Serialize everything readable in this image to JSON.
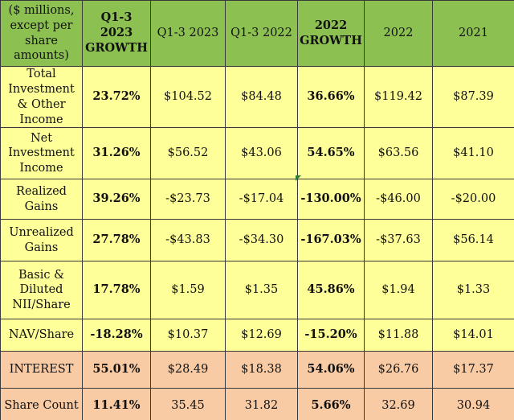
{
  "header": {
    "label": "($ millions, except per share amounts)",
    "col_q13_growth": "Q1-3 2023 GROWTH",
    "col_q13_2023": "Q1-3 2023",
    "col_q13_2022": "Q1-3 2022",
    "col_2022_growth": "2022 GROWTH",
    "col_2022": "2022",
    "col_2021": "2021"
  },
  "rows": [
    {
      "label": "Total Investment & Other Income",
      "q13_growth": "23.72%",
      "q13_2023": "$104.52",
      "q13_2022": "$84.48",
      "growth_2022": "36.66%",
      "y2022": "$119.42",
      "y2021": "$87.39"
    },
    {
      "label": "Net Investment Income",
      "q13_growth": "31.26%",
      "q13_2023": "$56.52",
      "q13_2022": "$43.06",
      "growth_2022": "54.65%",
      "y2022": "$63.56",
      "y2021": "$41.10"
    },
    {
      "label": "Realized Gains",
      "q13_growth": "39.26%",
      "q13_2023": "-$23.73",
      "q13_2022": "-$17.04",
      "growth_2022": "-130.00%",
      "y2022": "-$46.00",
      "y2021": "-$20.00"
    },
    {
      "label": "Unrealized Gains",
      "q13_growth": "27.78%",
      "q13_2023": "-$43.83",
      "q13_2022": "-$34.30",
      "growth_2022": "-167.03%",
      "y2022": "-$37.63",
      "y2021": "$56.14"
    },
    {
      "label": "Basic & Diluted NII/Share",
      "q13_growth": "17.78%",
      "q13_2023": "$1.59",
      "q13_2022": "$1.35",
      "growth_2022": "45.86%",
      "y2022": "$1.94",
      "y2021": "$1.33"
    },
    {
      "label": "NAV/Share",
      "q13_growth": "-18.28%",
      "q13_2023": "$10.37",
      "q13_2022": "$12.69",
      "growth_2022": "-15.20%",
      "y2022": "$11.88",
      "y2021": "$14.01"
    },
    {
      "label": "INTEREST",
      "q13_growth": "55.01%",
      "q13_2023": "$28.49",
      "q13_2022": "$18.38",
      "growth_2022": "54.06%",
      "y2022": "$26.76",
      "y2021": "$17.37"
    },
    {
      "label": "Share Count",
      "q13_growth": "11.41%",
      "q13_2023": "35.45",
      "q13_2022": "31.82",
      "growth_2022": "5.66%",
      "y2022": "32.69",
      "y2021": "30.94"
    }
  ],
  "colors": {
    "header": "#8cc152",
    "body": "#ffff99",
    "highlight": "#f8cba4"
  }
}
